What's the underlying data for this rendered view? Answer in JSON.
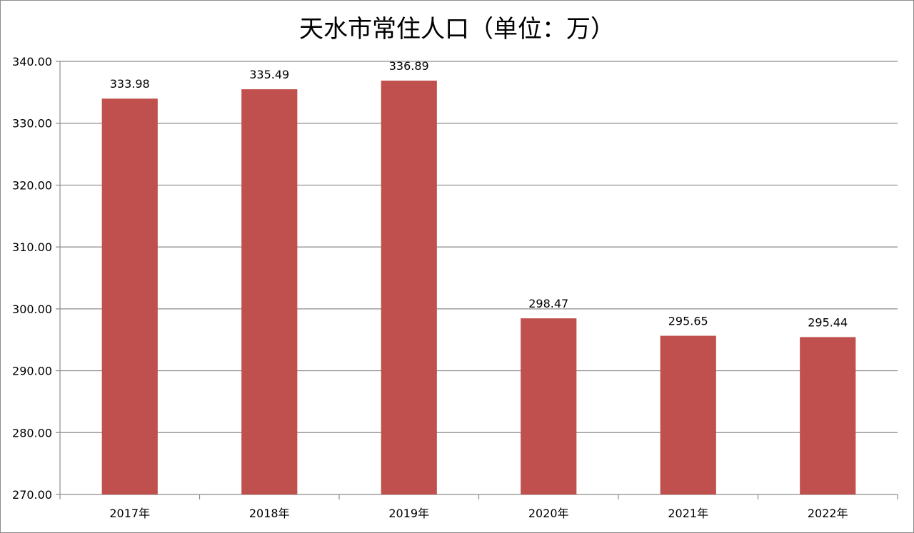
{
  "chart_data": {
    "type": "bar",
    "title": "天水市常住人口（单位：万）",
    "categories": [
      "2017年",
      "2018年",
      "2019年",
      "2020年",
      "2021年",
      "2022年"
    ],
    "series": [
      {
        "values": [
          333.98,
          335.49,
          336.89,
          298.47,
          295.65,
          295.44
        ],
        "data_labels": [
          "333.98",
          "335.49",
          "336.89",
          "298.47",
          "295.65",
          "295.44"
        ]
      }
    ],
    "ylim": [
      270,
      340
    ],
    "yticks": [
      270,
      280,
      290,
      300,
      310,
      320,
      330,
      340
    ],
    "ytick_labels": [
      "270.00",
      "280.00",
      "290.00",
      "300.00",
      "310.00",
      "320.00",
      "330.00",
      "340.00"
    ],
    "xlabel": "",
    "ylabel": "",
    "grid": true,
    "legend": "none",
    "colors": {
      "bar": "#C0504D",
      "grid": "#8c8c8c",
      "axis": "#8c8c8c"
    }
  }
}
